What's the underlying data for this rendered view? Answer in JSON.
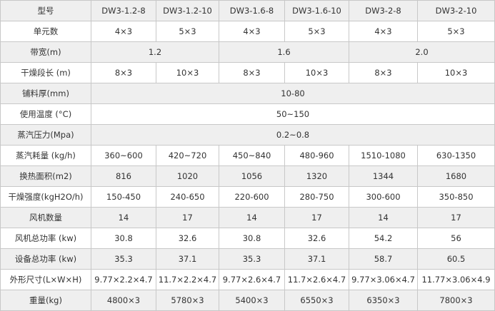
{
  "table": {
    "header": [
      "型号",
      "DW3-1.2-8",
      "DW3-1.2-10",
      "DW3-1.6-8",
      "DW3-1.6-10",
      "DW3-2-8",
      "DW3-2-10"
    ],
    "rows": [
      [
        "单元数",
        "4×3",
        "5×3",
        "4×3",
        "5×3",
        "4×3",
        "5×3"
      ],
      [
        "带宽(m)",
        "1.2",
        "1.6",
        "2.0"
      ],
      [
        "干燥段长 (m)",
        "8×3",
        "10×3",
        "8×3",
        "10×3",
        "8×3",
        "10×3"
      ],
      [
        "铺料厚(mm)",
        "10-80"
      ],
      [
        "使用温度 (°C)",
        "50~150"
      ],
      [
        "蒸汽压力(Mpa)",
        "0.2~0.8"
      ],
      [
        "蒸汽耗量 (kg/h)",
        "360~600",
        "420~720",
        "450~840",
        "480-960",
        "1510-1080",
        "630-1350"
      ],
      [
        "换热面积(m2)",
        "816",
        "1020",
        "1056",
        "1320",
        "1344",
        "1680"
      ],
      [
        "干燥强度(kgH2O/h)",
        "150-450",
        "240-650",
        "220-600",
        "280-750",
        "300-600",
        "350-850"
      ],
      [
        "风机数量",
        "14",
        "17",
        "14",
        "17",
        "14",
        "17"
      ],
      [
        "风机总功率 (kw)",
        "30.8",
        "32.6",
        "30.8",
        "32.6",
        "54.2",
        "56"
      ],
      [
        "设备总功率 (kw)",
        "35.3",
        "37.1",
        "35.3",
        "37.1",
        "58.7",
        "60.5"
      ],
      [
        "外形尺寸(L×W×H)",
        "9.77×2.2×4.7",
        "11.7×2.2×4.7",
        "9.77×2.6×4.7",
        "11.7×2.6×4.7",
        "9.77×3.06×4.7",
        "11.77×3.06×4.9"
      ],
      [
        "重量(kg)",
        "4800×3",
        "5780×3",
        "5400×3",
        "6550×3",
        "6350×3",
        "7800×3"
      ]
    ]
  }
}
